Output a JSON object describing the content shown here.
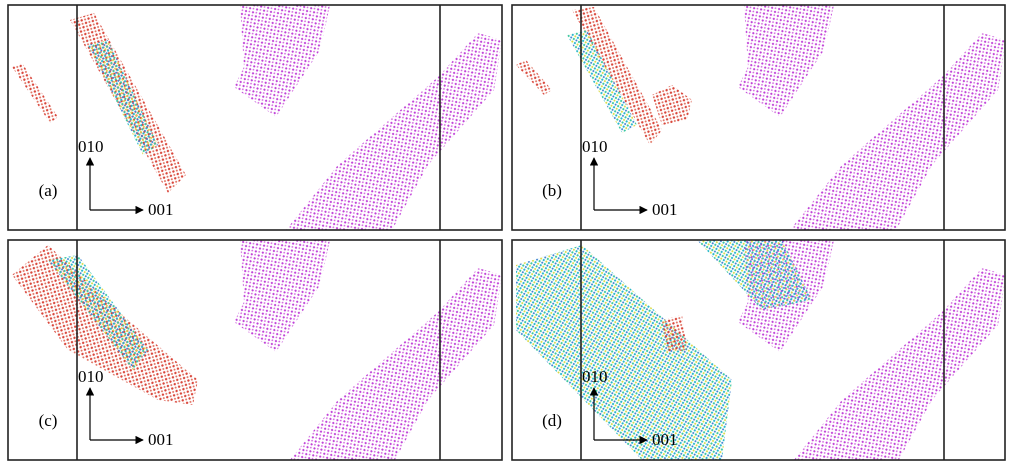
{
  "panels": [
    {
      "label": "(a)",
      "axis_vertical": "010",
      "axis_horizontal": "001"
    },
    {
      "label": "(b)",
      "axis_vertical": "010",
      "axis_horizontal": "001"
    },
    {
      "label": "(c)",
      "axis_vertical": "010",
      "axis_horizontal": "001"
    },
    {
      "label": "(d)",
      "axis_vertical": "010",
      "axis_horizontal": "001"
    }
  ]
}
